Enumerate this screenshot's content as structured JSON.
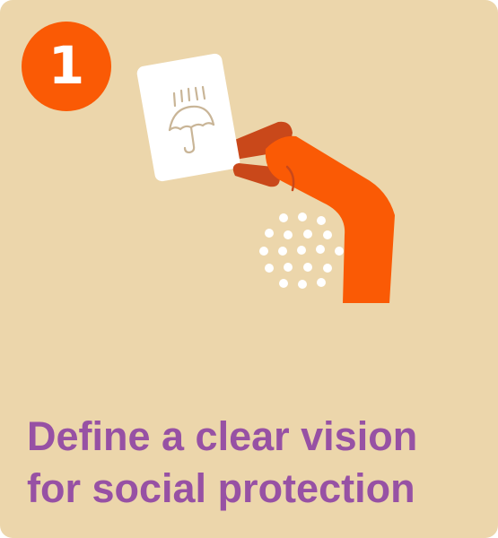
{
  "card": {
    "step_number": "1",
    "title_line_1": "Define a clear vision",
    "title_line_2": "for social protection"
  },
  "illustration": {
    "card_icon": "umbrella-rain-icon",
    "hand": "hand-holding-card"
  },
  "colors": {
    "background": "#ecd6ab",
    "accent": "#fa5a05",
    "accent_dark": "#c9481a",
    "title": "#9751a4",
    "paper": "#ffffff",
    "icon_line": "#c9b597",
    "dots": "#ffffff"
  }
}
